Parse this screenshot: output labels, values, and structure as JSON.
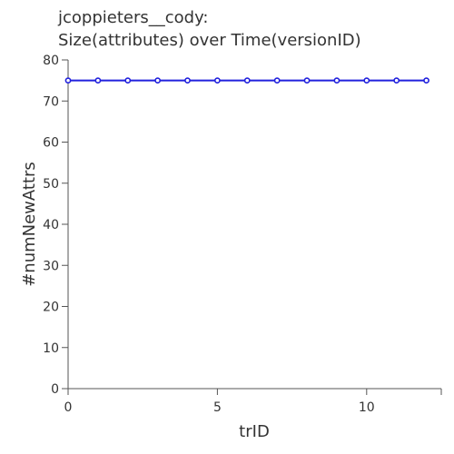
{
  "chart_data": {
    "type": "line",
    "title_lines": [
      "jcoppieters__cody:",
      "Size(attributes) over Time(versionID)"
    ],
    "xlabel": "trID",
    "ylabel": "#numNewAttrs",
    "xlim": [
      0,
      12.5
    ],
    "ylim": [
      0,
      80
    ],
    "x_ticks": [
      0,
      5,
      10
    ],
    "y_ticks": [
      0,
      10,
      20,
      30,
      40,
      50,
      60,
      70,
      80
    ],
    "grid": false,
    "series": [
      {
        "x": [
          0,
          1,
          2,
          3,
          4,
          5,
          6,
          7,
          8,
          9,
          10,
          11,
          12
        ],
        "values": [
          75,
          75,
          75,
          75,
          75,
          75,
          75,
          75,
          75,
          75,
          75,
          75,
          75
        ],
        "color": "#2020dd"
      }
    ]
  }
}
